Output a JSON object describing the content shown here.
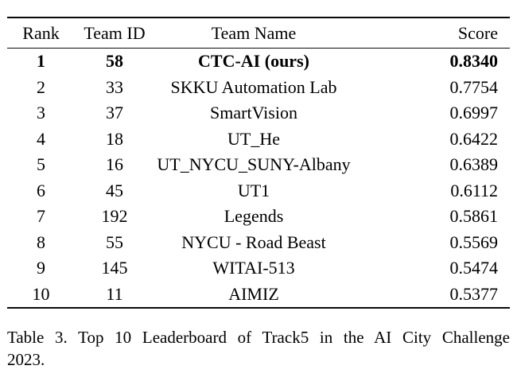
{
  "table": {
    "columns": [
      {
        "key": "rank",
        "label": "Rank"
      },
      {
        "key": "team_id",
        "label": "Team ID"
      },
      {
        "key": "team_name",
        "label": "Team Name"
      },
      {
        "key": "score",
        "label": "Score"
      }
    ],
    "rows": [
      {
        "rank": "1",
        "team_id": "58",
        "team_name": "CTC-AI (ours)",
        "score": "0.8340",
        "bold": true
      },
      {
        "rank": "2",
        "team_id": "33",
        "team_name": "SKKU Automation Lab",
        "score": "0.7754",
        "bold": false
      },
      {
        "rank": "3",
        "team_id": "37",
        "team_name": "SmartVision",
        "score": "0.6997",
        "bold": false
      },
      {
        "rank": "4",
        "team_id": "18",
        "team_name": "UT_He",
        "score": "0.6422",
        "bold": false
      },
      {
        "rank": "5",
        "team_id": "16",
        "team_name": "UT_NYCU_SUNY-Albany",
        "score": "0.6389",
        "bold": false
      },
      {
        "rank": "6",
        "team_id": "45",
        "team_name": "UT1",
        "score": "0.6112",
        "bold": false
      },
      {
        "rank": "7",
        "team_id": "192",
        "team_name": "Legends",
        "score": "0.5861",
        "bold": false
      },
      {
        "rank": "8",
        "team_id": "55",
        "team_name": "NYCU - Road Beast",
        "score": "0.5569",
        "bold": false
      },
      {
        "rank": "9",
        "team_id": "145",
        "team_name": "WITAI-513",
        "score": "0.5474",
        "bold": false
      },
      {
        "rank": "10",
        "team_id": "11",
        "team_name": "AIMIZ",
        "score": "0.5377",
        "bold": false
      }
    ]
  },
  "caption": {
    "line1": "Table 3. Top 10 Leaderboard of Track5 in the AI City Challenge",
    "line2": "2023."
  },
  "colors": {
    "background": "#ffffff",
    "text": "#000000",
    "rule": "#0a0a0a"
  }
}
